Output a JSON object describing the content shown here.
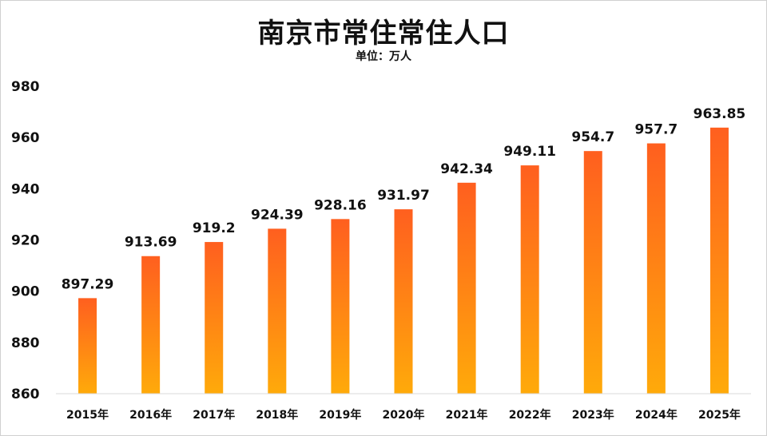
{
  "chart_data": {
    "type": "bar",
    "title": "南京市常住常住人口",
    "subtitle": "单位：万人",
    "xlabel": "",
    "ylabel": "",
    "categories": [
      "2015年",
      "2016年",
      "2017年",
      "2018年",
      "2019年",
      "2020年",
      "2021年",
      "2022年",
      "2023年",
      "2024年",
      "2025年"
    ],
    "values": [
      897.29,
      913.69,
      919.2,
      924.39,
      928.16,
      931.97,
      942.34,
      949.11,
      954.7,
      957.7,
      963.85
    ],
    "value_labels": [
      "897.29",
      "913.69",
      "919.2",
      "924.39",
      "928.16",
      "931.97",
      "942.34",
      "949.11",
      "954.7",
      "957.7",
      "963.85"
    ],
    "ylim": [
      860,
      980
    ],
    "yticks": [
      860,
      880,
      900,
      920,
      940,
      960,
      980
    ],
    "grid": false,
    "legend": "none",
    "bar_gradient": [
      "#ff5f1f",
      "#ffaa0a"
    ]
  }
}
